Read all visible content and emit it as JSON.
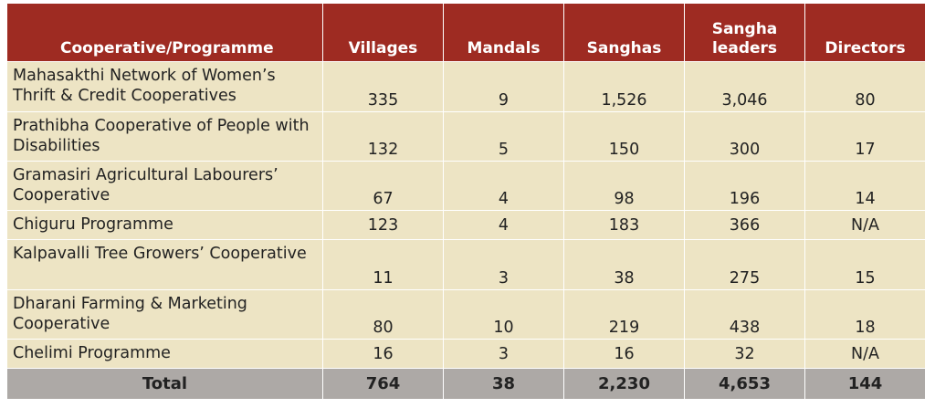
{
  "table": {
    "headers": {
      "name": "Cooperative/Programme",
      "villages": "Villages",
      "mandals": "Mandals",
      "sanghas": "Sanghas",
      "leaders_line1": "Sangha",
      "leaders_line2": "leaders",
      "directors": "Directors"
    },
    "rows": [
      {
        "name": "Mahasakthi Network of Women’s Thrift & Credit Cooperatives",
        "villages": "335",
        "mandals": "9",
        "sanghas": "1,526",
        "leaders": "3,046",
        "directors": "80"
      },
      {
        "name": "Prathibha Cooperative of People with Disabilities",
        "villages": "132",
        "mandals": "5",
        "sanghas": "150",
        "leaders": "300",
        "directors": "17"
      },
      {
        "name": "Gramasiri Agricultural Labourers’ Cooperative",
        "villages": "67",
        "mandals": "4",
        "sanghas": "98",
        "leaders": "196",
        "directors": "14"
      },
      {
        "name": "Chiguru Programme",
        "villages": "123",
        "mandals": "4",
        "sanghas": "183",
        "leaders": "366",
        "directors": "N/A"
      },
      {
        "name": "Kalpavalli Tree Growers’ Cooperative",
        "villages": "11",
        "mandals": "3",
        "sanghas": "38",
        "leaders": "275",
        "directors": "15"
      },
      {
        "name": "Dharani Farming & Marketing Cooperative",
        "villages": "80",
        "mandals": "10",
        "sanghas": "219",
        "leaders": "438",
        "directors": "18"
      },
      {
        "name": "Chelimi Programme",
        "villages": "16",
        "mandals": "3",
        "sanghas": "16",
        "leaders": "32",
        "directors": "N/A"
      }
    ],
    "total": {
      "label": "Total",
      "villages": "764",
      "mandals": "38",
      "sanghas": "2,230",
      "leaders": "4,653",
      "directors": "144"
    }
  },
  "colors": {
    "header": "#9e2b22",
    "row": "#ede4c4",
    "total": "#ada9a6"
  }
}
